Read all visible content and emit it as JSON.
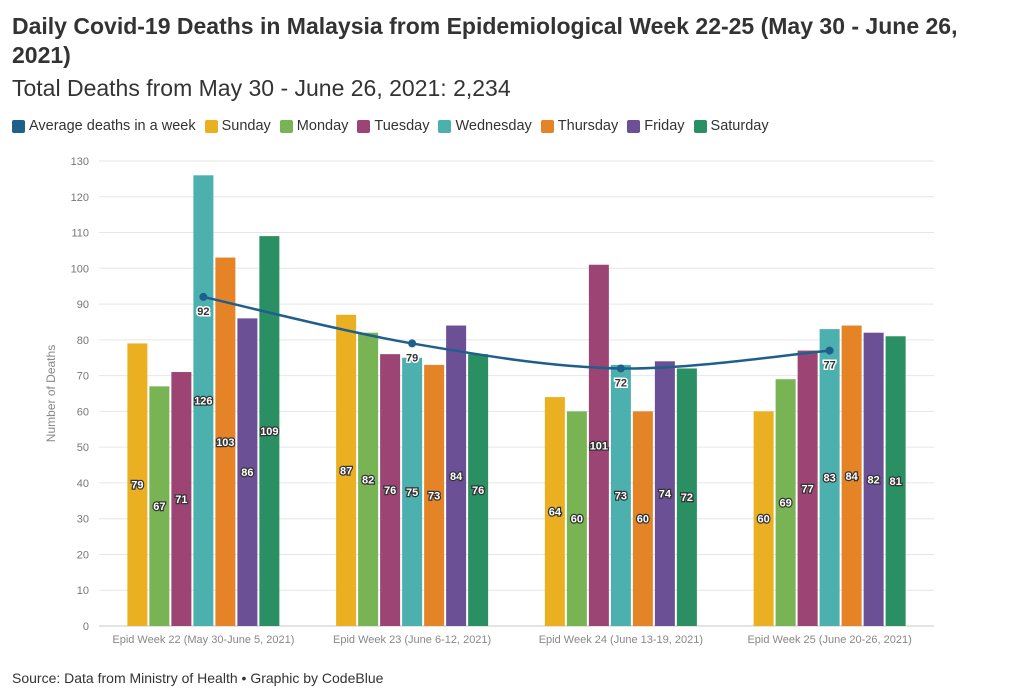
{
  "header": {
    "title": "Daily Covid-19 Deaths in Malaysia from Epidemiological Week 22-25 (May 30 - June 26, 2021)",
    "subtitle": "Total Deaths from May 30 - June 26, 2021: 2,234"
  },
  "legend": [
    {
      "label": "Average deaths in a week",
      "color": "#1e5f8c"
    },
    {
      "label": "Sunday",
      "color": "#ebb022"
    },
    {
      "label": "Monday",
      "color": "#78b454"
    },
    {
      "label": "Tuesday",
      "color": "#9c4574"
    },
    {
      "label": "Wednesday",
      "color": "#4cb0ae"
    },
    {
      "label": "Thursday",
      "color": "#e58426"
    },
    {
      "label": "Friday",
      "color": "#6c5096"
    },
    {
      "label": "Saturday",
      "color": "#2a8f62"
    }
  ],
  "footer": {
    "source": "Source: Data from Ministry of Health • Graphic by CodeBlue"
  },
  "chart_data": {
    "type": "bar",
    "categories": [
      "Epid Week 22 (May 30-June 5, 2021)",
      "Epid Week 23 (June 6-12, 2021)",
      "Epid Week 24 (June 13-19, 2021)",
      "Epid Week 25 (June 20-26, 2021)"
    ],
    "series": [
      {
        "name": "Sunday",
        "values": [
          79,
          87,
          64,
          60
        ],
        "color": "#ebb022"
      },
      {
        "name": "Monday",
        "values": [
          67,
          82,
          60,
          69
        ],
        "color": "#78b454"
      },
      {
        "name": "Tuesday",
        "values": [
          71,
          76,
          101,
          77
        ],
        "color": "#9c4574"
      },
      {
        "name": "Wednesday",
        "values": [
          126,
          75,
          73,
          83
        ],
        "color": "#4cb0ae"
      },
      {
        "name": "Thursday",
        "values": [
          103,
          73,
          60,
          84
        ],
        "color": "#e58426"
      },
      {
        "name": "Friday",
        "values": [
          86,
          84,
          74,
          82
        ],
        "color": "#6c5096"
      },
      {
        "name": "Saturday",
        "values": [
          109,
          76,
          72,
          81
        ],
        "color": "#2a8f62"
      }
    ],
    "line_series": {
      "name": "Average deaths in a week",
      "values": [
        92,
        79,
        72,
        77
      ],
      "color": "#1e5f8c",
      "type": "line"
    },
    "ylabel": "Number of Deaths",
    "xlabel": "",
    "ylim": [
      0,
      130
    ],
    "yticks": [
      0,
      10,
      20,
      30,
      40,
      50,
      60,
      70,
      80,
      90,
      100,
      110,
      120,
      130
    ],
    "grid": true,
    "legend_position": "top-left"
  }
}
